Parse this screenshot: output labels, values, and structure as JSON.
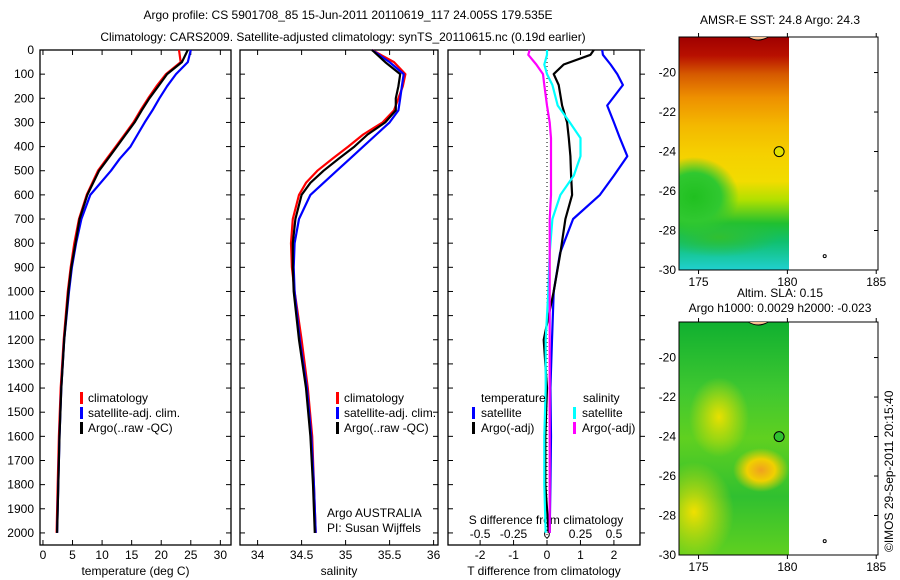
{
  "title": {
    "line1": "Argo profile: CS 5901708_85 15-Jun-2011 20110619_117 24.005S 179.535E",
    "line2": "Climatology: CARS2009. Satellite-adjusted climatology: synTS_20110615.nc (0.19d earlier)"
  },
  "watermark": "©IMOS 29-Sep-2011 20:15:40",
  "colors": {
    "climatology": "#ff0000",
    "satellite": "#0000ff",
    "argo": "#000000",
    "sat_s": "#00ffff",
    "argo_s": "#ff00ff"
  },
  "chart_data": [
    {
      "type": "line",
      "name": "temperature",
      "xlabel": "temperature (deg C)",
      "xlim": [
        -0.5,
        31.8
      ],
      "ylim": [
        0,
        2050
      ],
      "yinverted": true,
      "xticks": [
        "0",
        "5",
        "10",
        "15",
        "20",
        "25",
        "30"
      ],
      "xtick_values": [
        0,
        5,
        10,
        15,
        20,
        25,
        30
      ],
      "yticks": [
        0,
        100,
        200,
        300,
        400,
        500,
        600,
        700,
        800,
        900,
        1000,
        1100,
        1200,
        1300,
        1400,
        1500,
        1600,
        1700,
        1800,
        1900,
        2000
      ],
      "depth": [
        0,
        50,
        100,
        150,
        200,
        250,
        300,
        350,
        400,
        450,
        500,
        600,
        700,
        800,
        900,
        1000,
        1200,
        1400,
        1600,
        1800,
        2000
      ],
      "legend": [
        "climatology",
        "satellite-adj. clim.",
        "Argo(..raw -QC)"
      ],
      "series": [
        {
          "name": "climatology",
          "color": "#ff0000",
          "values": [
            23,
            23.3,
            20.8,
            19.2,
            17.8,
            16.5,
            15.3,
            13.8,
            12.3,
            10.8,
            9.3,
            7.4,
            6.1,
            5.3,
            4.7,
            4.2,
            3.5,
            3.0,
            2.7,
            2.5,
            2.3
          ]
        },
        {
          "name": "satellite-adj. clim.",
          "color": "#0000ff",
          "values": [
            25,
            24.5,
            22.5,
            21,
            19.7,
            18.5,
            17.2,
            16,
            14.8,
            13,
            11.5,
            8,
            6.5,
            5.6,
            4.9,
            4.4,
            3.6,
            3.1,
            2.8,
            2.6,
            2.4
          ]
        },
        {
          "name": "Argo(..raw -QC)",
          "color": "#000000",
          "values": [
            24.5,
            23.5,
            21,
            19.5,
            18,
            16.7,
            15.5,
            14,
            12.5,
            11,
            9.5,
            7.5,
            6.2,
            5.5,
            4.8,
            4.3,
            3.6,
            3.1,
            2.8,
            2.6,
            2.4
          ]
        }
      ]
    },
    {
      "type": "line",
      "name": "salinity",
      "xlabel": "salinity",
      "xlim": [
        33.8,
        36.05
      ],
      "ylim": [
        0,
        2050
      ],
      "yinverted": true,
      "xticks": [
        "34",
        "34.5",
        "35",
        "35.5",
        "36"
      ],
      "xtick_values": [
        34,
        34.5,
        35,
        35.5,
        36
      ],
      "depth": [
        0,
        50,
        100,
        150,
        200,
        250,
        300,
        350,
        400,
        450,
        500,
        550,
        600,
        700,
        800,
        900,
        1000,
        1200,
        1400,
        1600,
        1800,
        2000
      ],
      "legend": [
        "climatology",
        "satellite-adj. clim.",
        "Argo(..raw -QC)"
      ],
      "annotation": [
        "Argo AUSTRALIA",
        "PI: Susan Wijffels"
      ],
      "series": [
        {
          "name": "climatology",
          "color": "#ff0000",
          "values": [
            35.3,
            35.55,
            35.68,
            35.65,
            35.6,
            35.55,
            35.42,
            35.2,
            35.03,
            34.85,
            34.68,
            34.55,
            34.47,
            34.4,
            34.38,
            34.39,
            34.42,
            34.5,
            34.57,
            34.62,
            34.64,
            34.66
          ]
        },
        {
          "name": "satellite-adj. clim.",
          "color": "#0000ff",
          "values": [
            35.3,
            35.5,
            35.66,
            35.64,
            35.62,
            35.6,
            35.5,
            35.35,
            35.2,
            35.05,
            34.9,
            34.75,
            34.6,
            34.47,
            34.42,
            34.41,
            34.42,
            34.48,
            34.56,
            34.61,
            34.64,
            34.66
          ]
        },
        {
          "name": "Argo(..raw -QC)",
          "color": "#000000",
          "values": [
            35.3,
            35.45,
            35.62,
            35.6,
            35.57,
            35.57,
            35.45,
            35.25,
            35.1,
            34.92,
            34.75,
            34.6,
            34.5,
            34.43,
            34.4,
            34.4,
            34.41,
            34.47,
            34.55,
            34.6,
            34.63,
            34.65
          ]
        }
      ]
    },
    {
      "type": "line",
      "name": "difference",
      "xlabel": "T difference from climatology",
      "xlabel2": "S difference from climatology",
      "xlim": [
        -2.96,
        2.78
      ],
      "ylim": [
        0,
        2050
      ],
      "yinverted": true,
      "xticks": [
        "-2",
        "-1",
        "0",
        "1",
        "2"
      ],
      "xtick_values": [
        -2,
        -1,
        0,
        1,
        2
      ],
      "xticks2": [
        "-0.5",
        "-0.25",
        "0",
        "0.25",
        "0.5"
      ],
      "xtick2_values": [
        -0.5,
        -0.25,
        0,
        0.25,
        0.5
      ],
      "legend_headers": [
        "temperature",
        "salinity"
      ],
      "legend": [
        "satellite",
        "Argo(-adj)",
        "satellite",
        "Argo(-adj)"
      ],
      "depth": [
        0,
        20,
        60,
        100,
        145,
        230,
        300,
        365,
        440,
        520,
        600,
        700,
        840,
        1000,
        1200,
        1400,
        1600,
        1800,
        2000
      ],
      "series": [
        {
          "name": "T satellite",
          "color": "#0000ff",
          "units": "T",
          "values": [
            1.65,
            1.67,
            1.9,
            2.1,
            2.27,
            1.8,
            2.0,
            2.18,
            2.4,
            2.0,
            1.58,
            0.78,
            0.39,
            0.2,
            0.15,
            0.1,
            0.12,
            0.1,
            0.08
          ]
        },
        {
          "name": "T Argo(-adj)",
          "color": "#000000",
          "units": "T",
          "values": [
            1.4,
            1.3,
            0.5,
            0.2,
            0.35,
            0.45,
            0.6,
            0.65,
            0.7,
            0.72,
            0.75,
            0.55,
            0.4,
            0.2,
            -0.1,
            0,
            -0.05,
            -0.05,
            0.05
          ]
        },
        {
          "name": "S satellite",
          "color": "#00ffff",
          "units": "S",
          "values": [
            0,
            0,
            -0.02,
            0,
            0.04,
            0.08,
            0.17,
            0.25,
            0.25,
            0.2,
            0.1,
            0.04,
            0.02,
            0.01,
            -0.01,
            -0.01,
            -0.02,
            -0.02,
            -0.01
          ]
        },
        {
          "name": "S Argo(-adj)",
          "color": "#ff00ff",
          "units": "S",
          "values": [
            -0.13,
            -0.14,
            -0.08,
            -0.03,
            -0.02,
            0,
            0.02,
            0.03,
            0.03,
            0.03,
            0.03,
            0.02,
            0.02,
            0.02,
            0.02,
            0.02,
            0.02,
            0.02,
            0.02
          ]
        }
      ]
    }
  ],
  "maps": [
    {
      "title": [
        "AMSR-E SST: 24.8 Argo: 24.3"
      ],
      "lat_ticks": [
        "-20",
        "-22",
        "-24",
        "-26",
        "-28",
        "-30"
      ],
      "lon_ticks": [
        "175",
        "180",
        "185"
      ],
      "argo_lon": 179.535,
      "argo_lat": -24.005,
      "marker_color": "#e0e000"
    },
    {
      "title": [
        "Altim. SLA: 0.15",
        "Argo h1000: 0.0029 h2000: -0.023"
      ],
      "lat_ticks": [
        "-20",
        "-22",
        "-24",
        "-26",
        "-28",
        "-30"
      ],
      "lon_ticks": [
        "175",
        "180",
        "185"
      ],
      "argo_lon": 179.535,
      "argo_lat": -24.005,
      "marker_color": "#30c030"
    }
  ]
}
